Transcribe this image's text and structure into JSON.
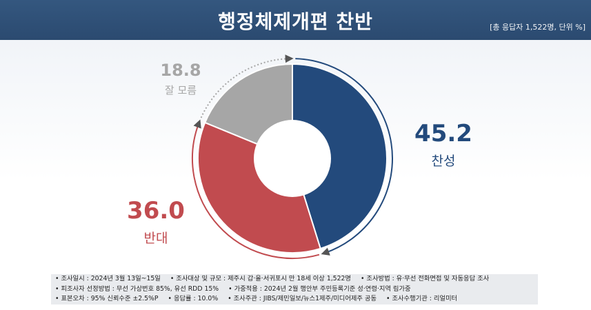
{
  "header": {
    "title": "행정체제개편 찬반",
    "note": "[총 응답자 1,522명, 단위 %]"
  },
  "chart_data": {
    "type": "pie",
    "title": "행정체제개편 찬반",
    "unit": "%",
    "slices": [
      {
        "label": "찬성",
        "value": 45.2,
        "color": "#234a7c"
      },
      {
        "label": "반대",
        "value": 36.0,
        "color": "#c14b4f"
      },
      {
        "label": "잘 모름",
        "value": 18.8,
        "color": "#a6a6a6"
      }
    ]
  },
  "footer": {
    "rows": [
      [
        "• 조사일시 : 2024년 3월 13일~15일",
        "• 조사대상 및 규모 : 제주시 갑·을·서귀포시 만 18세 이상 1,522명",
        "• 조사방법 : 유·무선 전화면접 및 자동응답 조사"
      ],
      [
        "• 피조사자 선정방법 : 무선 가상번호 85%, 유선 RDD 15%",
        "• 가중적용 : 2024년 2월 행안부 주민등록기준 성·연령·지역 림가중"
      ],
      [
        "• 표본오차 : 95% 신뢰수준 ±2.5%P",
        "• 응답률 : 10.0%",
        "• 조사주관 : JIBS/제민일보/뉴스1제주/미디어제주 공동",
        "• 조사수행기관 : 리얼미터"
      ]
    ]
  }
}
